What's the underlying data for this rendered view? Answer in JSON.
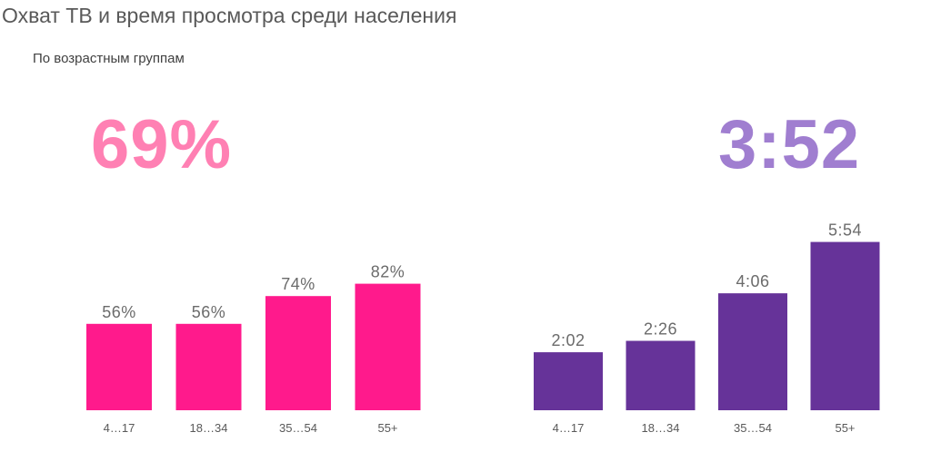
{
  "title": "Охват ТВ и время просмотра среди населения",
  "subtitle": "По возрастным группам",
  "colors": {
    "reach_bar": "#ff1a8c",
    "reach_big": "#ff80b3",
    "time_bar": "#663399",
    "time_big": "#a07ed0"
  },
  "chart_data": [
    {
      "type": "bar",
      "headline": "69%",
      "categories": [
        "4…17",
        "18…34",
        "35…54",
        "55+"
      ],
      "values": [
        56,
        56,
        74,
        82
      ],
      "labels": [
        "56%",
        "56%",
        "74%",
        "82%"
      ],
      "ylim": [
        0,
        100
      ],
      "unit": "%",
      "grid": false
    },
    {
      "type": "bar",
      "headline": "3:52",
      "categories": [
        "4…17",
        "18…34",
        "35…54",
        "55+"
      ],
      "values": [
        122,
        146,
        246,
        354
      ],
      "labels": [
        "2:02",
        "2:26",
        "4:06",
        "5:54"
      ],
      "ylim": [
        0,
        420
      ],
      "unit": "minutes (h:mm)",
      "grid": false
    }
  ]
}
